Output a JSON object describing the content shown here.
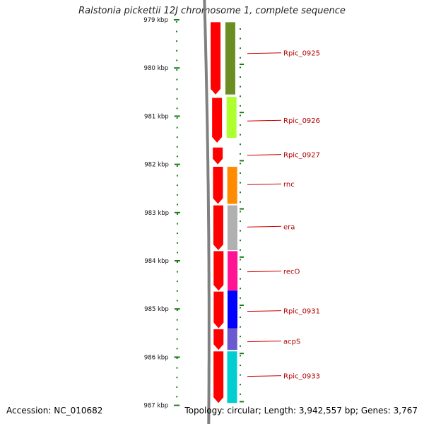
{
  "title": "Ralstonia pickettii 12J chromosome 1, complete sequence",
  "footer": {
    "accession": "Accession: NC_010682",
    "summary": "Topology: circular; Length: 3,942,557 bp; Genes: 3,767"
  },
  "colors": {
    "backbone": "#808080",
    "cds": "#ff0000",
    "tick": "#1a7a1a",
    "label": "#b00000",
    "leader": "#cc0000"
  },
  "ticks": [
    {
      "label": "979 kbp",
      "kbp": 979
    },
    {
      "label": "980 kbp",
      "kbp": 980
    },
    {
      "label": "981 kbp",
      "kbp": 981
    },
    {
      "label": "982 kbp",
      "kbp": 982
    },
    {
      "label": "983 kbp",
      "kbp": 983
    },
    {
      "label": "984 kbp",
      "kbp": 984
    },
    {
      "label": "985 kbp",
      "kbp": 985
    },
    {
      "label": "986 kbp",
      "kbp": 986
    },
    {
      "label": "987 kbp",
      "kbp": 987
    }
  ],
  "genes": [
    {
      "name": "Rpic_0925",
      "color": "#6b8e23",
      "start": 979.05,
      "end": 980.55,
      "label_kbp": 979.7
    },
    {
      "name": "Rpic_0926",
      "color": "#adff2f",
      "start": 980.6,
      "end": 981.45,
      "label_kbp": 981.1
    },
    {
      "name": "Rpic_0927",
      "color": "#ffffff",
      "start": 981.46,
      "end": 981.5,
      "label_kbp": 981.81
    },
    {
      "name": "rnc",
      "color": "#ff8c00",
      "start": 982.05,
      "end": 982.82,
      "label_kbp": 982.42
    },
    {
      "name": "era",
      "color": "#b0b0b0",
      "start": 982.85,
      "end": 983.78,
      "label_kbp": 983.3
    },
    {
      "name": "recO",
      "color": "#ff1493",
      "start": 983.8,
      "end": 984.62,
      "label_kbp": 984.23
    },
    {
      "name": "Rpic_0931",
      "color": "#0000ff",
      "start": 984.62,
      "end": 985.4,
      "label_kbp": 985.05
    },
    {
      "name": "acpS",
      "color": "#6a5acd",
      "start": 985.4,
      "end": 985.85,
      "label_kbp": 985.68
    },
    {
      "name": "Rpic_0933",
      "color": "#00ced1",
      "start": 985.88,
      "end": 986.95,
      "label_kbp": 986.4
    }
  ],
  "cds_blocks": [
    {
      "start": 979.05,
      "end": 980.55
    },
    {
      "start": 980.62,
      "end": 981.55
    },
    {
      "start": 981.65,
      "end": 982.0
    },
    {
      "start": 982.05,
      "end": 982.82
    },
    {
      "start": 982.85,
      "end": 983.78
    },
    {
      "start": 983.8,
      "end": 984.62
    },
    {
      "start": 984.64,
      "end": 985.4
    },
    {
      "start": 985.42,
      "end": 985.85
    },
    {
      "start": 985.88,
      "end": 986.95
    }
  ]
}
